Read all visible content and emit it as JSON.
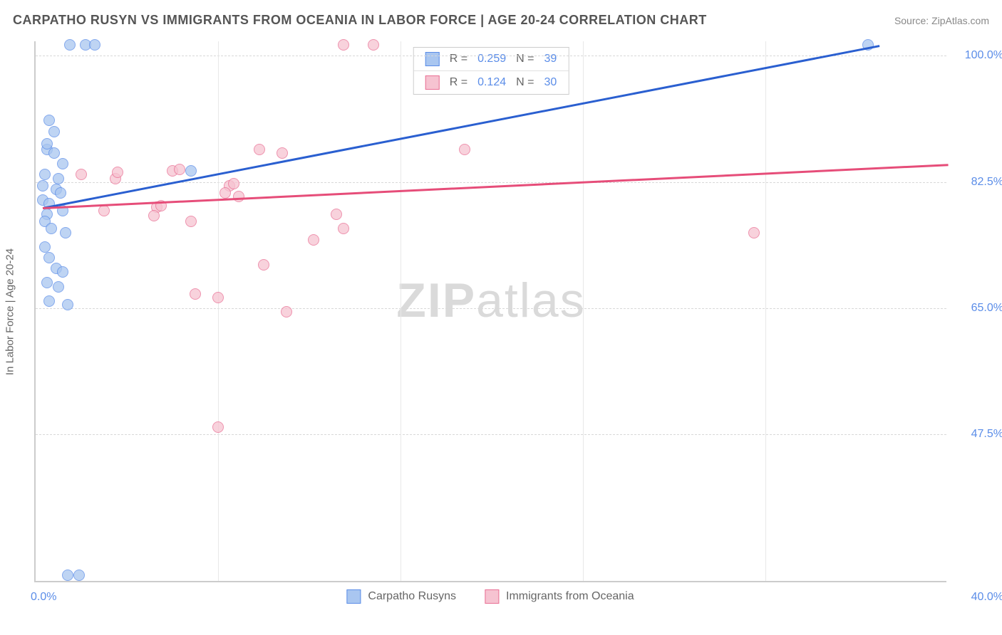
{
  "title": "CARPATHO RUSYN VS IMMIGRANTS FROM OCEANIA IN LABOR FORCE | AGE 20-24 CORRELATION CHART",
  "source": "Source: ZipAtlas.com",
  "y_axis_label": "In Labor Force | Age 20-24",
  "watermark_bold": "ZIP",
  "watermark_light": "atlas",
  "x_min": 0.0,
  "x_max": 40.0,
  "y_min": 27.0,
  "y_max": 102.0,
  "x_tick_left": "0.0%",
  "x_tick_right": "40.0%",
  "y_ticks": [
    {
      "v": 100.0,
      "label": "100.0%"
    },
    {
      "v": 82.5,
      "label": "82.5%"
    },
    {
      "v": 65.0,
      "label": "65.0%"
    },
    {
      "v": 47.5,
      "label": "47.5%"
    }
  ],
  "v_grid_x": [
    8,
    16,
    24,
    32
  ],
  "series": [
    {
      "name": "Carpatho Rusyns",
      "legend_key": "legend_a",
      "fill": "#a9c6f0",
      "stroke": "#5b8de8",
      "line_color": "#2a5fd0",
      "R": "0.259",
      "N": "39",
      "trend": {
        "x1": 0.3,
        "y1": 79.0,
        "x2": 37.0,
        "y2": 101.5
      },
      "points": [
        {
          "x": 1.5,
          "y": 101.5
        },
        {
          "x": 2.2,
          "y": 101.5
        },
        {
          "x": 2.6,
          "y": 101.5
        },
        {
          "x": 0.6,
          "y": 91.0
        },
        {
          "x": 0.8,
          "y": 89.5
        },
        {
          "x": 0.5,
          "y": 87.0
        },
        {
          "x": 0.5,
          "y": 87.8
        },
        {
          "x": 0.8,
          "y": 86.5
        },
        {
          "x": 1.2,
          "y": 85.0
        },
        {
          "x": 0.4,
          "y": 83.5
        },
        {
          "x": 1.0,
          "y": 83.0
        },
        {
          "x": 0.3,
          "y": 82.0
        },
        {
          "x": 0.9,
          "y": 81.5
        },
        {
          "x": 1.1,
          "y": 81.0
        },
        {
          "x": 0.3,
          "y": 80.0
        },
        {
          "x": 0.6,
          "y": 79.5
        },
        {
          "x": 0.5,
          "y": 78.0
        },
        {
          "x": 1.2,
          "y": 78.5
        },
        {
          "x": 0.4,
          "y": 77.0
        },
        {
          "x": 0.7,
          "y": 76.0
        },
        {
          "x": 1.3,
          "y": 75.5
        },
        {
          "x": 0.4,
          "y": 73.5
        },
        {
          "x": 0.6,
          "y": 72.0
        },
        {
          "x": 0.9,
          "y": 70.5
        },
        {
          "x": 1.2,
          "y": 70.0
        },
        {
          "x": 0.5,
          "y": 68.5
        },
        {
          "x": 1.0,
          "y": 68.0
        },
        {
          "x": 0.6,
          "y": 66.0
        },
        {
          "x": 1.4,
          "y": 65.5
        },
        {
          "x": 6.8,
          "y": 84.0
        },
        {
          "x": 36.5,
          "y": 101.5
        },
        {
          "x": 1.4,
          "y": 28.0
        },
        {
          "x": 1.9,
          "y": 28.0
        }
      ]
    },
    {
      "name": "Immigrants from Oceania",
      "legend_key": "legend_b",
      "fill": "#f6c3d1",
      "stroke": "#e96f94",
      "line_color": "#e64d79",
      "R": "0.124",
      "N": "30",
      "trend": {
        "x1": 0.3,
        "y1": 79.0,
        "x2": 40.0,
        "y2": 85.0
      },
      "points": [
        {
          "x": 13.5,
          "y": 101.5
        },
        {
          "x": 14.8,
          "y": 101.5
        },
        {
          "x": 2.0,
          "y": 83.5
        },
        {
          "x": 3.5,
          "y": 83.0
        },
        {
          "x": 3.6,
          "y": 83.8
        },
        {
          "x": 6.0,
          "y": 84.0
        },
        {
          "x": 6.3,
          "y": 84.2
        },
        {
          "x": 8.5,
          "y": 82.0
        },
        {
          "x": 8.7,
          "y": 82.3
        },
        {
          "x": 9.8,
          "y": 87.0
        },
        {
          "x": 10.8,
          "y": 86.5
        },
        {
          "x": 18.8,
          "y": 87.0
        },
        {
          "x": 3.0,
          "y": 78.5
        },
        {
          "x": 5.3,
          "y": 79.0
        },
        {
          "x": 5.5,
          "y": 79.2
        },
        {
          "x": 6.8,
          "y": 77.0
        },
        {
          "x": 8.3,
          "y": 81.0
        },
        {
          "x": 8.9,
          "y": 80.5
        },
        {
          "x": 5.2,
          "y": 77.8
        },
        {
          "x": 13.2,
          "y": 78.0
        },
        {
          "x": 13.5,
          "y": 76.0
        },
        {
          "x": 7.0,
          "y": 67.0
        },
        {
          "x": 8.0,
          "y": 66.5
        },
        {
          "x": 10.0,
          "y": 71.0
        },
        {
          "x": 12.2,
          "y": 74.5
        },
        {
          "x": 11.0,
          "y": 64.5
        },
        {
          "x": 31.5,
          "y": 75.5
        },
        {
          "x": 8.0,
          "y": 48.5
        }
      ]
    }
  ],
  "stats_legend": {
    "R_label": "R =",
    "N_label": "N ="
  },
  "bottom_legend": {
    "a": "Carpatho Rusyns",
    "b": "Immigrants from Oceania"
  }
}
